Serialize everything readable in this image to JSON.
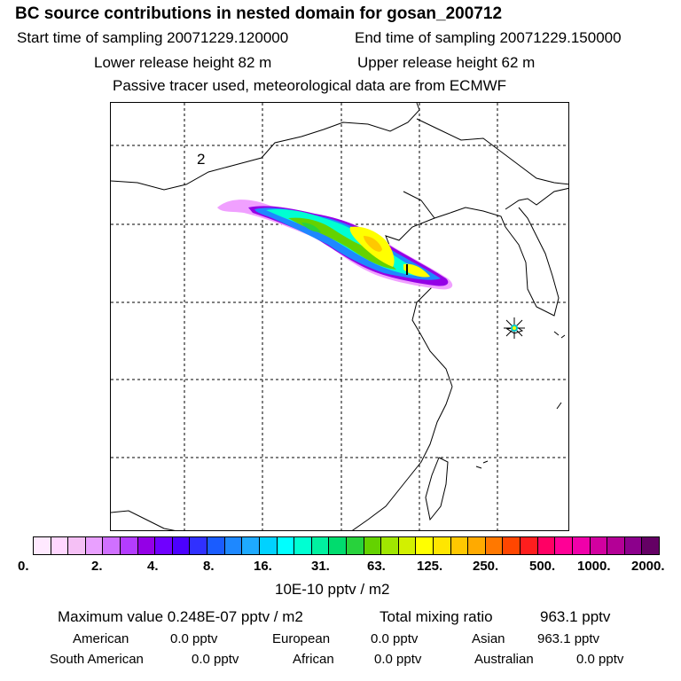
{
  "header": {
    "title": "BC  source contributions in nested domain for gosan_200712",
    "start_time": "Start time of sampling 20071229.120000",
    "end_time": "End time of sampling 20071229.150000",
    "lower_height": "Lower release height   82 m",
    "upper_height": "Upper release height   62 m",
    "tracer_note": "Passive tracer used, meteorological data are from ECMWF"
  },
  "map": {
    "label": "2",
    "receptor": "gosan"
  },
  "colorbar": {
    "colors": [
      "#ffe9ff",
      "#ffd6ff",
      "#f5c0f5",
      "#e9a0ff",
      "#d070ff",
      "#b43cff",
      "#9400e6",
      "#7000ff",
      "#4c00ff",
      "#3030ff",
      "#1a5cff",
      "#1e88ff",
      "#1eaaff",
      "#00d2ff",
      "#00ffff",
      "#00ffd2",
      "#00f0a0",
      "#00dc6e",
      "#28d23c",
      "#64d200",
      "#a0e600",
      "#d2f000",
      "#ffff00",
      "#ffe600",
      "#ffc800",
      "#ffaa00",
      "#ff7800",
      "#ff4600",
      "#ff1e1e",
      "#ff0064",
      "#ff0096",
      "#f000aa",
      "#d200a0",
      "#b40096",
      "#8c008c",
      "#640064"
    ],
    "ticks": [
      "0.",
      "2.",
      "4.",
      "8.",
      "16.",
      "31.",
      "63.",
      "125.",
      "250.",
      "500.",
      "1000.",
      "2000."
    ],
    "units": "10E-10 pptv / m2"
  },
  "stats": {
    "max_value": "Maximum value  0.248E-07 pptv / m2",
    "total_mixing": "Total mixing ratio",
    "total_mixing_value": "963.1 pptv",
    "american_label": "American",
    "american_value": "0.0 pptv",
    "european_label": "European",
    "european_value": "0.0 pptv",
    "asian_label": "Asian",
    "asian_value": "963.1 pptv",
    "south_american_label": "South American",
    "south_american_value": "0.0 pptv",
    "african_label": "African",
    "african_value": "0.0 pptv",
    "australian_label": "Australian",
    "australian_value": "0.0 pptv"
  }
}
